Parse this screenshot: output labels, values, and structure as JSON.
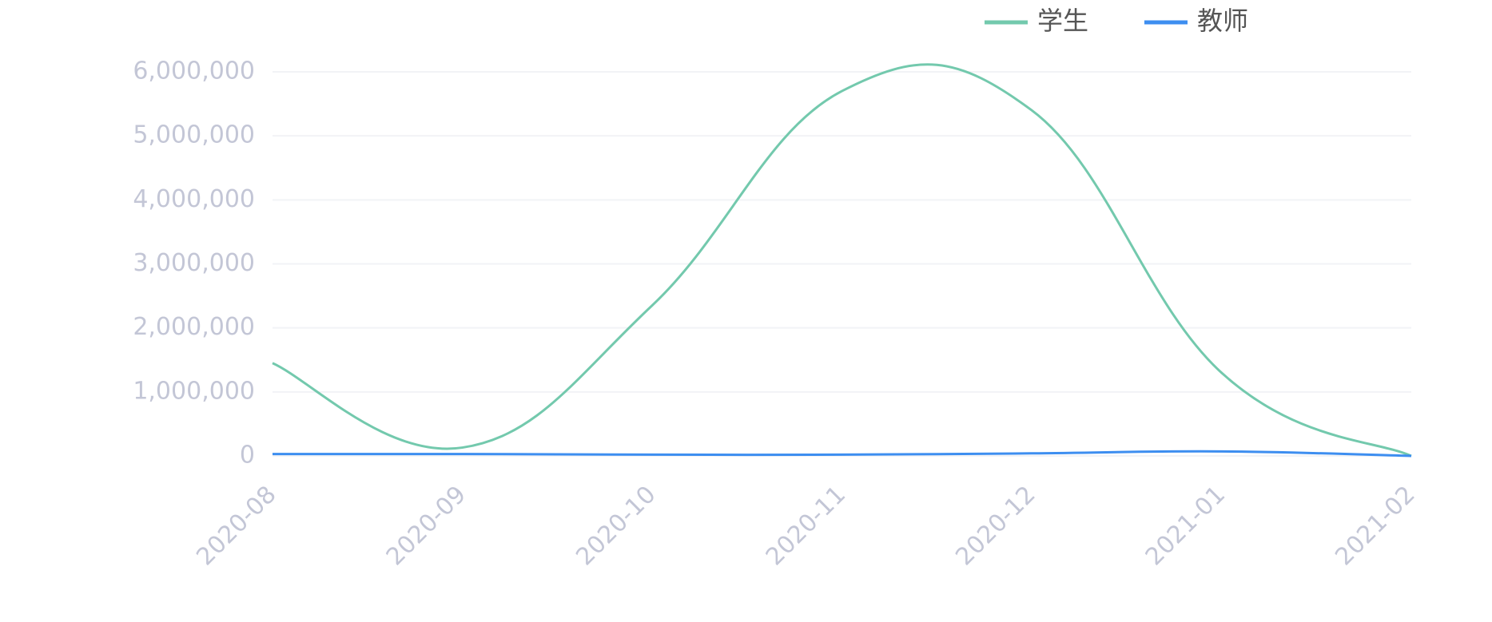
{
  "chart_data": {
    "type": "line",
    "categories": [
      "2020-08",
      "2020-09",
      "2020-10",
      "2020-11",
      "2020-12",
      "2021-01",
      "2021-02"
    ],
    "series": [
      {
        "name": "学生",
        "color": "#73c9ad",
        "values": [
          1450000,
          130000,
          2350000,
          5700000,
          5400000,
          1300000,
          0
        ]
      },
      {
        "name": "教师",
        "color": "#3d8ef0",
        "values": [
          30000,
          30000,
          20000,
          20000,
          40000,
          70000,
          0
        ]
      }
    ],
    "ylim": [
      0,
      6000000
    ],
    "yticks": [
      0,
      {
        "value": 1000000,
        "label": "1,000,000"
      },
      {
        "value": 2000000,
        "label": "2,000,000"
      },
      {
        "value": 3000000,
        "label": "3,000,000"
      },
      {
        "value": 4000000,
        "label": "4,000,000"
      },
      {
        "value": 5000000,
        "label": "5,000,000"
      },
      {
        "value": 6000000,
        "label": "6,000,000"
      }
    ],
    "grid": true,
    "legend": "top-right"
  }
}
